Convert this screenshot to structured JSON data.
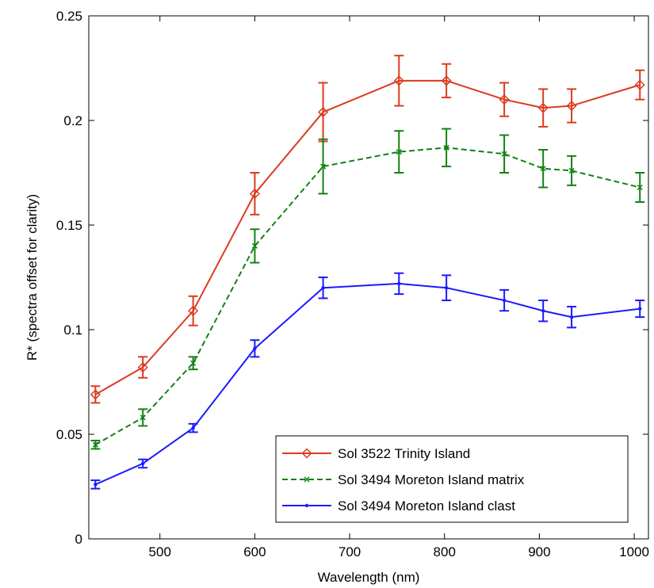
{
  "chart_data": {
    "type": "line",
    "title": "",
    "xlabel": "Wavelength (nm)",
    "ylabel": "R* (spectra offset for clarity)",
    "xlim": [
      425,
      1015
    ],
    "ylim": [
      0,
      0.25
    ],
    "x_ticks": [
      500,
      600,
      700,
      800,
      900,
      1000
    ],
    "x_tick_labels": [
      "500",
      "600",
      "700",
      "800",
      "900",
      "1000"
    ],
    "y_ticks": [
      0,
      0.05,
      0.1,
      0.15,
      0.2,
      0.25
    ],
    "y_tick_labels": [
      "0",
      "0.05",
      "0.1",
      "0.15",
      "0.2",
      "0.25"
    ],
    "grid": false,
    "legend_position": "bottom-right",
    "x": [
      432,
      482,
      535,
      600,
      672,
      752,
      802,
      863,
      904,
      934,
      1006
    ],
    "series": [
      {
        "name": "Sol 3522 Trinity Island",
        "color": "#dc3a1f",
        "line_style": "solid",
        "marker": "diamond",
        "values": [
          0.069,
          0.082,
          0.109,
          0.165,
          0.204,
          0.219,
          0.219,
          0.21,
          0.206,
          0.207,
          0.217
        ],
        "errors": [
          0.004,
          0.005,
          0.007,
          0.01,
          0.014,
          0.012,
          0.008,
          0.008,
          0.009,
          0.008,
          0.007
        ]
      },
      {
        "name": "Sol 3494 Moreton Island matrix",
        "color": "#138113",
        "line_style": "dashed",
        "marker": "x",
        "values": [
          0.045,
          0.058,
          0.084,
          0.14,
          0.178,
          0.185,
          0.187,
          0.184,
          0.177,
          0.176,
          0.168
        ],
        "errors": [
          0.002,
          0.004,
          0.003,
          0.008,
          0.013,
          0.01,
          0.009,
          0.009,
          0.009,
          0.007,
          0.007
        ]
      },
      {
        "name": "Sol 3494 Moreton Island clast",
        "color": "#1a1aff",
        "line_style": "solid",
        "marker": "point",
        "values": [
          0.026,
          0.036,
          0.053,
          0.091,
          0.12,
          0.122,
          0.12,
          0.114,
          0.109,
          0.106,
          0.11
        ],
        "errors": [
          0.002,
          0.002,
          0.002,
          0.004,
          0.005,
          0.005,
          0.006,
          0.005,
          0.005,
          0.005,
          0.004
        ]
      }
    ]
  }
}
